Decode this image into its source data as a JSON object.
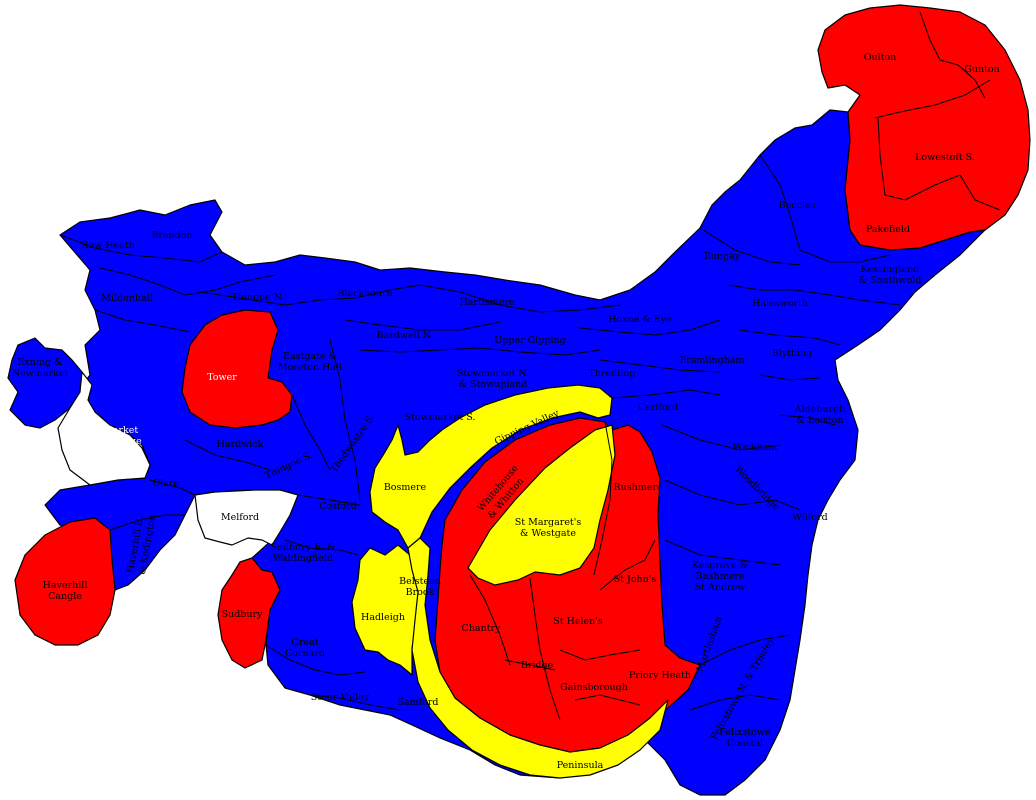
{
  "colors": {
    "party_blue": "#0000ff",
    "party_red": "#ff0000",
    "party_yellow": "#ffff00",
    "unheld_white": "#ffffff"
  },
  "labels": {
    "oulton": "Oulton",
    "gunton": "Gunton",
    "lowestoft_s": "Lowestoft S.",
    "pakefield": "Pakefield",
    "beccles": "Beccles",
    "bungay": "Bungay",
    "kessingland": [
      "Kessingland",
      "& Southwold"
    ],
    "halesworth": "Halesworth",
    "blything": "Blything",
    "aldeburgh": [
      "Aldeburgh",
      "& Leiston"
    ],
    "row_heath": "Row Heath",
    "brandon": "Brandon",
    "mildenhall": "Mildenhall",
    "thingoe_n": "Thingoe N.",
    "blackbourn": "Blackbourn",
    "hartismere": "Hartismere",
    "hoxne": "Hoxne & Eye",
    "exning": [
      "Exning &",
      "Newmarket"
    ],
    "tower": "Tower",
    "eastgate": [
      "Eastgate &",
      "Moreton Hall"
    ],
    "pakenham": "Pakenham",
    "bardwell_n": "Bardwell N.",
    "upper_gipping": "Upper Gipping",
    "framlingham": "Framlingham",
    "stowmarket_n": [
      "Stowmarket N.",
      "& Stowupland"
    ],
    "thredling": "Thredling",
    "carlford": "Carlford",
    "stowmarket_s": "Stowmarket S.",
    "newmarket_rl": [
      "Newmarket",
      "& Red Lodge"
    ],
    "hardwick": "Hardwick",
    "thingoe_s": "Thingoe S.",
    "thedwastre_s": "Thedwastre S.",
    "wilford_w": "Wickham",
    "woodbridge": "Woodbridge",
    "wilford": "Wilford",
    "gipping_valley": "Gipping Valley",
    "bosmere": "Bosmere",
    "whitehouse": [
      "Whitehouse",
      "& Whitton"
    ],
    "rushmere": "Rushmere",
    "st_margarets": [
      "St Margaret's",
      "& Westgate"
    ],
    "clare": "Clare",
    "melford": "Melford",
    "cosford": "Cosford",
    "havehill_e": [
      "Haverhill E.",
      "& Kedington"
    ],
    "sudbury_e": [
      "Sudbury E. &",
      "Waldingfield"
    ],
    "belstead": [
      "Belstead",
      "Brook"
    ],
    "kesgrave": [
      "Kesgrave &",
      "Rushmere",
      "St Andrew"
    ],
    "stjohns": "St John's",
    "haverhill_cangle": [
      "Haverhill",
      "Cangle"
    ],
    "sudbury": "Sudbury",
    "hadleigh": "Hadleigh",
    "chantry": "Chantry",
    "st_helens": "St Helen's",
    "bridge": "Bridge",
    "gainsborough": "Gainsborough",
    "priory_heath": "Priory Heath",
    "great_cornard": [
      "Great",
      "Cornard"
    ],
    "stour_valley": "Stour Valley",
    "samford": "Samford",
    "felixstowe_nt": "Felixstowe N. & Trimley",
    "felixstowe_c": [
      "Felixstowe",
      "Coastal"
    ],
    "martlesham": "Martlesham",
    "peninsula": "Peninsula"
  }
}
